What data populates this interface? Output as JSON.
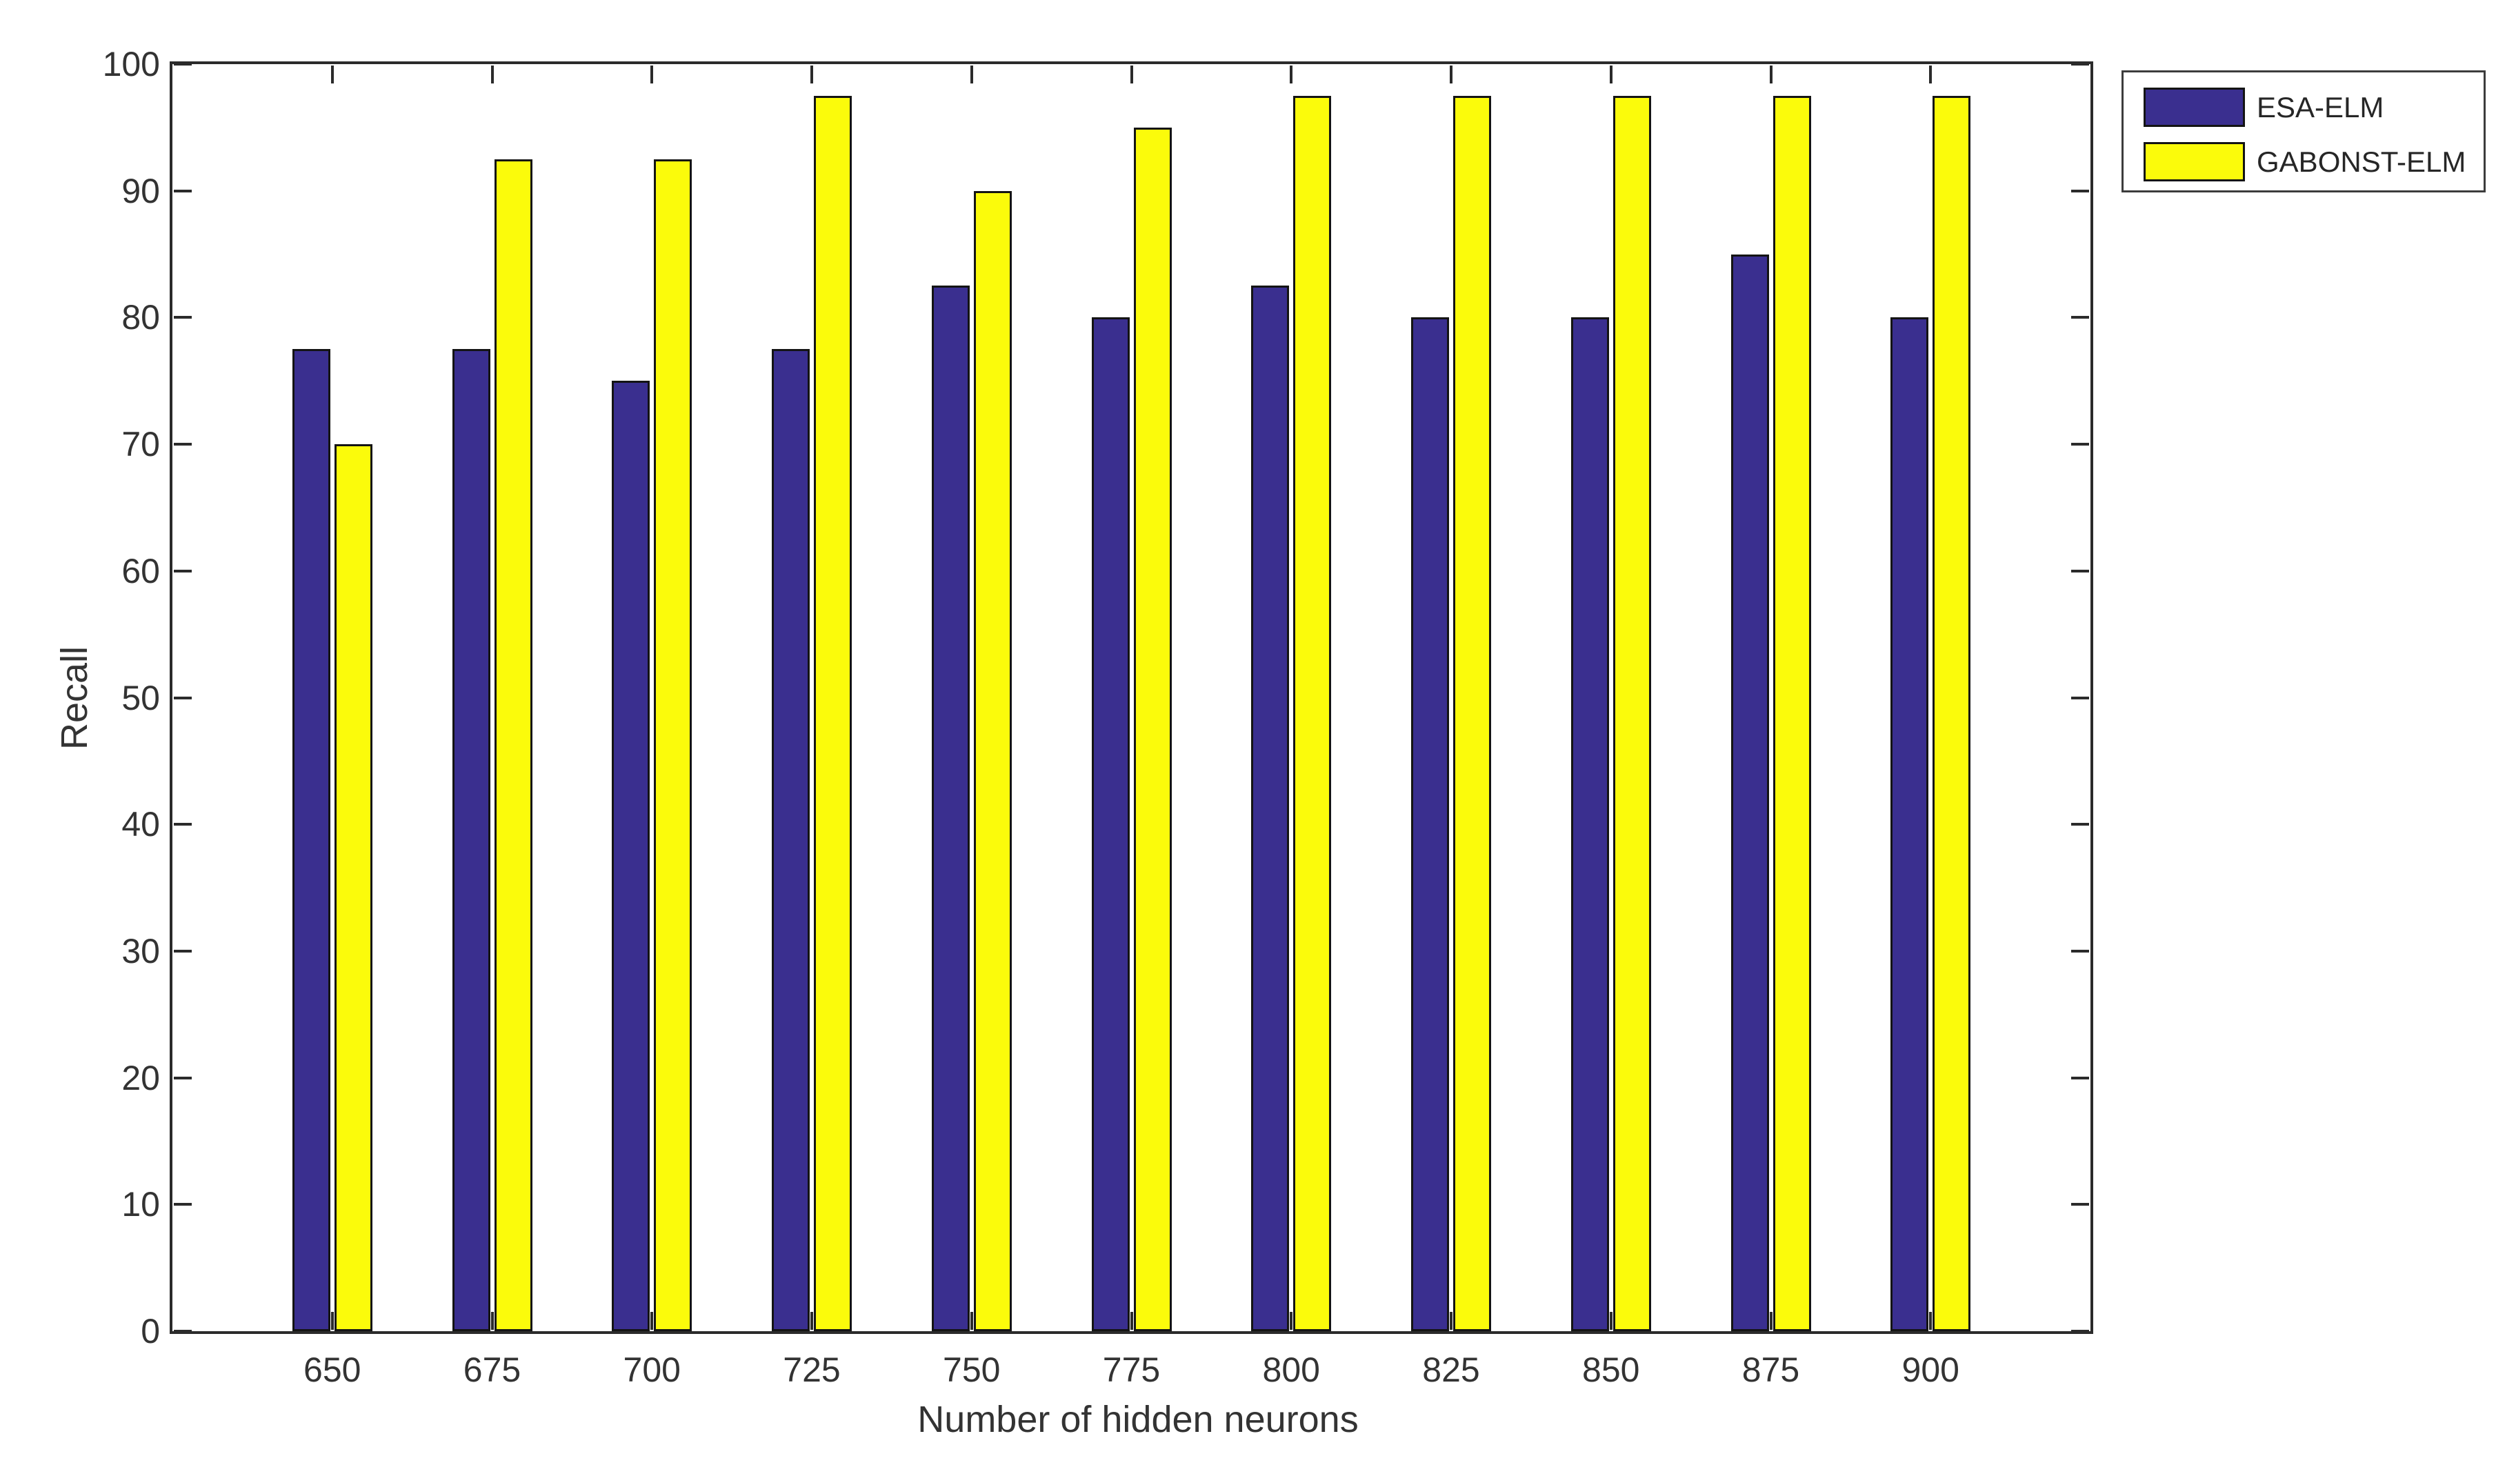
{
  "figure": {
    "background_color": "#ffffff",
    "axis_color": "#2b2b2b",
    "text_color": "#333333"
  },
  "chart_data": {
    "type": "bar",
    "title": "",
    "xlabel": "Number of hidden neurons",
    "ylabel": "Recall",
    "categories": [
      "650",
      "675",
      "700",
      "725",
      "750",
      "775",
      "800",
      "825",
      "850",
      "875",
      "900"
    ],
    "series": [
      {
        "name": "ESA-ELM",
        "color": "#3a2f8f",
        "values": [
          77.5,
          77.5,
          75,
          77.5,
          82.5,
          80,
          82.5,
          80,
          80,
          85,
          80
        ]
      },
      {
        "name": "GABONST-ELM",
        "color": "#fbfb0b",
        "values": [
          70,
          92.5,
          92.5,
          97.5,
          90,
          95,
          97.5,
          97.5,
          97.5,
          97.5,
          97.5
        ]
      }
    ],
    "ylim": [
      0,
      100
    ],
    "yticks": [
      0,
      10,
      20,
      30,
      40,
      50,
      60,
      70,
      80,
      90,
      100
    ],
    "grid": false,
    "bar_edge_color": "#141414",
    "legend_position": "outside-top-right"
  },
  "legend": {
    "items": [
      {
        "label": "ESA-ELM",
        "color": "#3a2f8f"
      },
      {
        "label": "GABONST-ELM",
        "color": "#fbfb0b"
      }
    ]
  }
}
